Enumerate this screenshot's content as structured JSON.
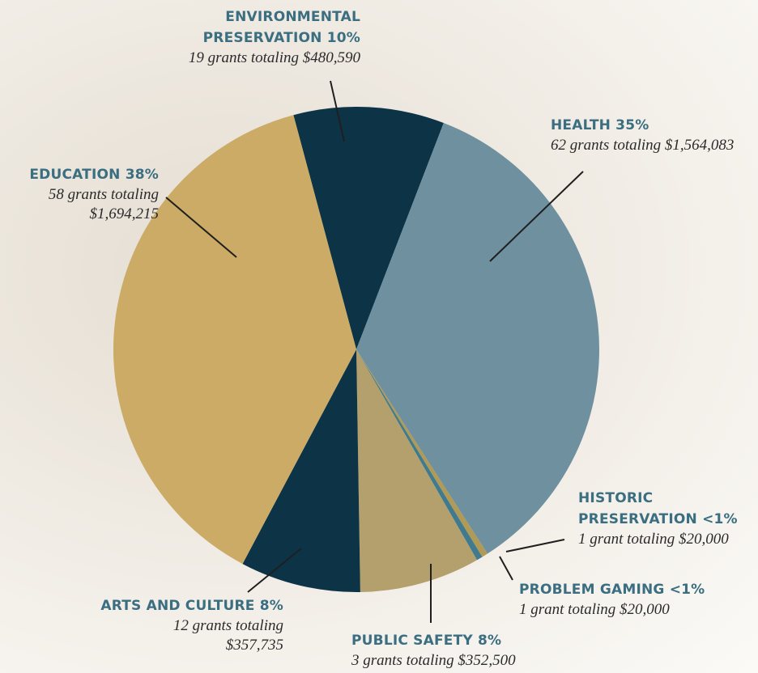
{
  "chart_data": {
    "type": "pie",
    "categories": [
      "ENVIRONMENTAL PRESERVATION",
      "HEALTH",
      "HISTORIC PRESERVATION",
      "PROBLEM GAMING",
      "PUBLIC SAFETY",
      "ARTS AND CULTURE",
      "EDUCATION"
    ],
    "values": [
      10,
      35,
      0.4,
      0.4,
      8,
      8,
      38
    ],
    "value_labels": [
      "10%",
      "35%",
      "<1%",
      "<1%",
      "8%",
      "8%",
      "38%"
    ],
    "details": [
      "19 grants totaling $480,590",
      "62 grants totaling $1,564,083",
      "1 grant totaling $20,000",
      "1 grant totaling $20,000",
      "3 grants totaling $352,500",
      "12 grants totaling $357,735",
      "58 grants totaling $1,694,215"
    ],
    "colors": [
      "#0c3446",
      "#6f909f",
      "#b09a55",
      "#3f7a8e",
      "#b3a06c",
      "#0c3446",
      "#cbab65"
    ]
  }
}
